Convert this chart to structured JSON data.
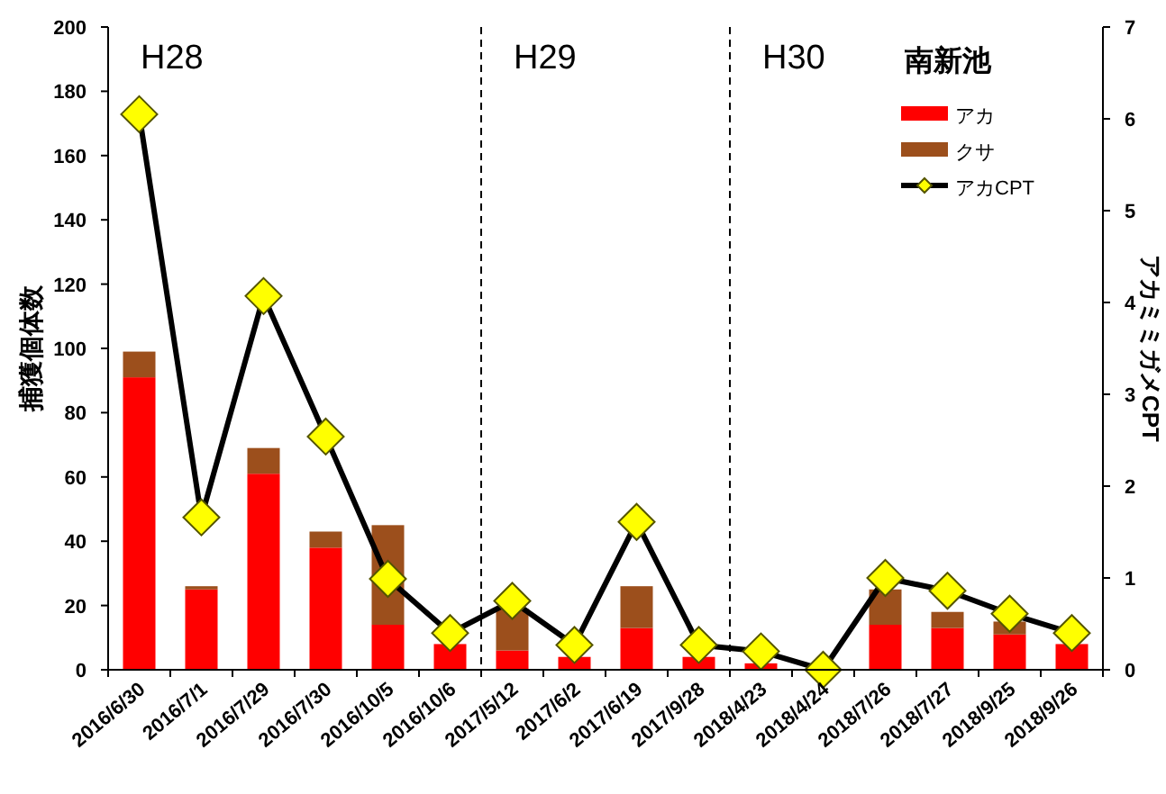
{
  "chart_data": {
    "type": "bar",
    "stacked": true,
    "legend_title": "南新池",
    "ylabel": "捕獲個体数",
    "y2label": "アカミミガメCPT",
    "categories": [
      "2016/6/30",
      "2016/7/1",
      "2016/7/29",
      "2016/7/30",
      "2016/10/5",
      "2016/10/6",
      "2017/5/12",
      "2017/6/2",
      "2017/6/19",
      "2017/9/28",
      "2018/4/23",
      "2018/4/24",
      "2018/7/26",
      "2018/7/27",
      "2018/9/25",
      "2018/9/26"
    ],
    "series": [
      {
        "name": "アカ",
        "color": "#ff0000",
        "values": [
          91,
          25,
          61,
          38,
          14,
          8,
          6,
          4,
          13,
          4,
          2,
          0,
          14,
          13,
          11,
          8
        ]
      },
      {
        "name": "クサ",
        "color": "#9c4f1c",
        "values": [
          8,
          1,
          8,
          5,
          31,
          null,
          13,
          null,
          13,
          null,
          0,
          0,
          11,
          5,
          4,
          0
        ]
      },
      {
        "name": "アカCPT",
        "type": "line",
        "axis": "y2",
        "color": "#000000",
        "marker": "diamond",
        "values": [
          6.05,
          1.66,
          4.07,
          2.54,
          0.99,
          0.4,
          0.75,
          0.27,
          1.61,
          0.27,
          0.2,
          0.0,
          1.0,
          0.86,
          0.61,
          0.4
        ]
      }
    ],
    "ylim": [
      0,
      200
    ],
    "yticks": [
      0,
      20,
      40,
      60,
      80,
      100,
      120,
      140,
      160,
      180,
      200
    ],
    "y2lim": [
      0,
      7
    ],
    "y2ticks": [
      0,
      1,
      2,
      3,
      4,
      5,
      6,
      7
    ],
    "annotations": [
      "H28",
      "H29",
      "H30"
    ],
    "grid": false,
    "legend": "top right"
  }
}
